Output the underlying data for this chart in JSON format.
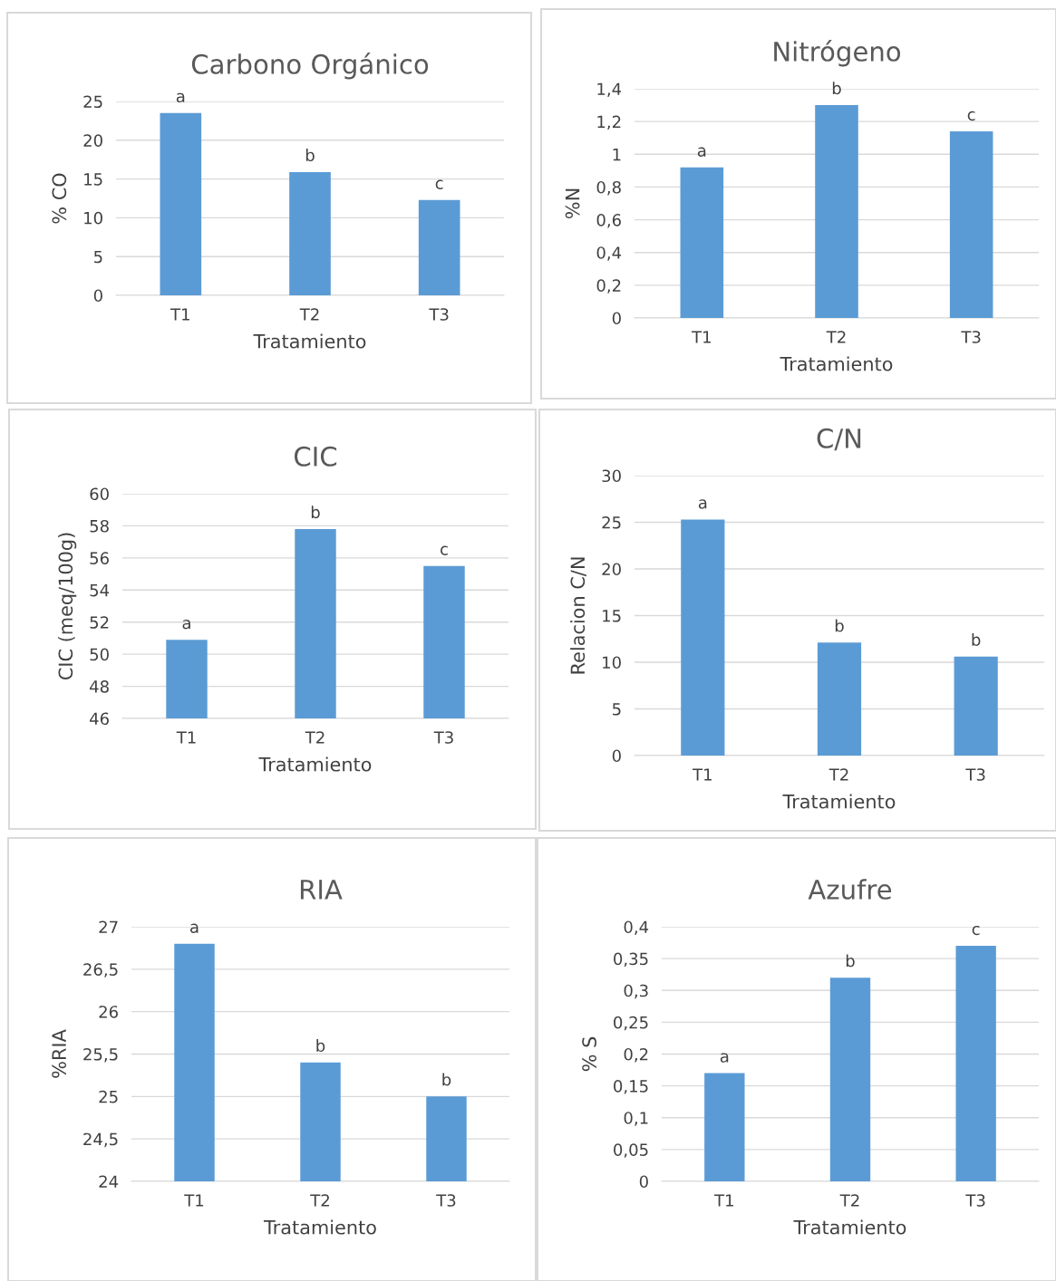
{
  "chart_data": [
    {
      "type": "bar",
      "title": "Carbono Orgánico",
      "xlabel": "Tratamiento",
      "ylabel": "% CO",
      "categories": [
        "T1",
        "T2",
        "T3"
      ],
      "values": [
        23.5,
        15.9,
        12.3
      ],
      "color": "#5b9bd5",
      "ylim": [
        0,
        25
      ],
      "yticks": [
        0,
        5,
        10,
        15,
        20,
        25
      ],
      "grid": "y",
      "legend": false,
      "annotations": [
        {
          "text": "a",
          "x": "T1",
          "y": 23.5
        },
        {
          "text": "b",
          "x": "T2",
          "y": 15.9
        },
        {
          "text": "c",
          "x": "T3",
          "y": 12.3
        }
      ]
    },
    {
      "type": "bar",
      "title": "Nitrógeno",
      "xlabel": "Tratamiento",
      "ylabel": "%N",
      "categories": [
        "T1",
        "T2",
        "T3"
      ],
      "values": [
        0.92,
        1.3,
        1.14
      ],
      "color": "#5b9bd5",
      "ylim": [
        0,
        1.4
      ],
      "yticks": [
        0,
        {
          "value": 0.2,
          "label": "0,2"
        },
        {
          "value": 0.4,
          "label": "0,4"
        },
        {
          "value": 0.6,
          "label": "0,6"
        },
        {
          "value": 0.8,
          "label": "0,8"
        },
        1,
        {
          "value": 1.2,
          "label": "1,2"
        },
        {
          "value": 1.4,
          "label": "1,4"
        }
      ],
      "grid": "y",
      "legend": false,
      "annotations": [
        {
          "text": "a",
          "x": "T1",
          "y": 0.92
        },
        {
          "text": "b",
          "x": "T2",
          "y": 1.3
        },
        {
          "text": "c",
          "x": "T3",
          "y": 1.14
        }
      ]
    },
    {
      "type": "bar",
      "title": "CIC",
      "xlabel": "Tratamiento",
      "ylabel": "CIC (meq/100g)",
      "categories": [
        "T1",
        "T2",
        "T3"
      ],
      "values": [
        50.9,
        57.8,
        55.5
      ],
      "color": "#5b9bd5",
      "ylim": [
        46,
        60
      ],
      "yticks": [
        46,
        48,
        50,
        52,
        54,
        56,
        58,
        60
      ],
      "grid": "y",
      "legend": false,
      "annotations": [
        {
          "text": "a",
          "x": "T1",
          "y": 50.9
        },
        {
          "text": "b",
          "x": "T2",
          "y": 57.8
        },
        {
          "text": "c",
          "x": "T3",
          "y": 55.5
        }
      ]
    },
    {
      "type": "bar",
      "title": "C/N",
      "xlabel": "Tratamiento",
      "ylabel": "Relacion C/N",
      "categories": [
        "T1",
        "T2",
        "T3"
      ],
      "values": [
        25.3,
        12.1,
        10.6
      ],
      "color": "#5b9bd5",
      "ylim": [
        0,
        30
      ],
      "yticks": [
        0,
        5,
        10,
        15,
        20,
        25,
        30
      ],
      "grid": "y",
      "legend": false,
      "annotations": [
        {
          "text": "a",
          "x": "T1",
          "y": 25.3
        },
        {
          "text": "b",
          "x": "T2",
          "y": 12.1
        },
        {
          "text": "b",
          "x": "T3",
          "y": 10.6
        }
      ]
    },
    {
      "type": "bar",
      "title": "RIA",
      "xlabel": "Tratamiento",
      "ylabel": "%RIA",
      "categories": [
        "T1",
        "T2",
        "T3"
      ],
      "values": [
        26.8,
        25.4,
        25.0
      ],
      "color": "#5b9bd5",
      "ylim": [
        24,
        27
      ],
      "yticks": [
        24,
        {
          "value": 24.5,
          "label": "24,5"
        },
        25,
        {
          "value": 25.5,
          "label": "25,5"
        },
        26,
        {
          "value": 26.5,
          "label": "26,5"
        },
        27
      ],
      "grid": "y",
      "legend": false,
      "annotations": [
        {
          "text": "a",
          "x": "T1",
          "y": 26.8
        },
        {
          "text": "b",
          "x": "T2",
          "y": 25.4
        },
        {
          "text": "b",
          "x": "T3",
          "y": 25.0
        }
      ]
    },
    {
      "type": "bar",
      "title": "Azufre",
      "xlabel": "Tratamiento",
      "ylabel": "% S",
      "categories": [
        "T1",
        "T2",
        "T3"
      ],
      "values": [
        0.17,
        0.32,
        0.37
      ],
      "color": "#5b9bd5",
      "ylim": [
        0,
        0.4
      ],
      "yticks": [
        0,
        {
          "value": 0.05,
          "label": "0,05"
        },
        {
          "value": 0.1,
          "label": "0,1"
        },
        {
          "value": 0.15,
          "label": "0,15"
        },
        {
          "value": 0.2,
          "label": "0,2"
        },
        {
          "value": 0.25,
          "label": "0,25"
        },
        {
          "value": 0.3,
          "label": "0,3"
        },
        {
          "value": 0.35,
          "label": "0,35"
        },
        {
          "value": 0.4,
          "label": "0,4"
        }
      ],
      "grid": "y",
      "legend": false,
      "annotations": [
        {
          "text": "a",
          "x": "T1",
          "y": 0.17
        },
        {
          "text": "b",
          "x": "T2",
          "y": 0.32
        },
        {
          "text": "c",
          "x": "T3",
          "y": 0.37
        }
      ]
    }
  ]
}
